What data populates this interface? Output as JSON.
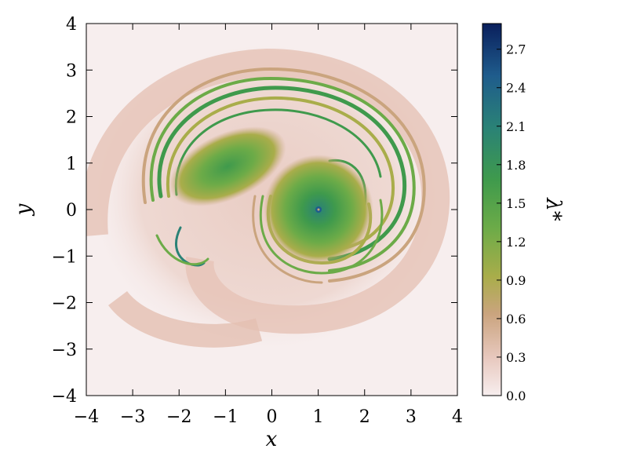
{
  "chart_data": {
    "type": "heatmap",
    "title": "",
    "xlabel": "x",
    "ylabel": "y",
    "xlim": [
      -4,
      4
    ],
    "ylim": [
      -4,
      4
    ],
    "x_ticks": [
      "−4",
      "−3",
      "−2",
      "−1",
      "0",
      "1",
      "2",
      "3",
      "4"
    ],
    "y_ticks": [
      "4",
      "3",
      "2",
      "1",
      "0",
      "−1",
      "−2",
      "−3",
      "−4"
    ],
    "grid": false,
    "colorbar": {
      "label": "λ*",
      "range": [
        0.0,
        2.9
      ],
      "ticks": [
        "2.7",
        "2.4",
        "2.1",
        "1.8",
        "1.5",
        "1.2",
        "0.9",
        "0.6",
        "0.3",
        "0.0"
      ],
      "colors": [
        "#f7eeee",
        "#e8c9bf",
        "#caa47e",
        "#a9ad4a",
        "#6cab48",
        "#3f9a4c",
        "#2a8276",
        "#1f5c8c",
        "#0a1f5c"
      ]
    },
    "features": {
      "vortex_center": [
        1.0,
        0.0
      ],
      "vortex_core_value": 1.8,
      "secondary_blob_center": [
        -1.0,
        1.0
      ],
      "max_value": 2.9
    }
  }
}
